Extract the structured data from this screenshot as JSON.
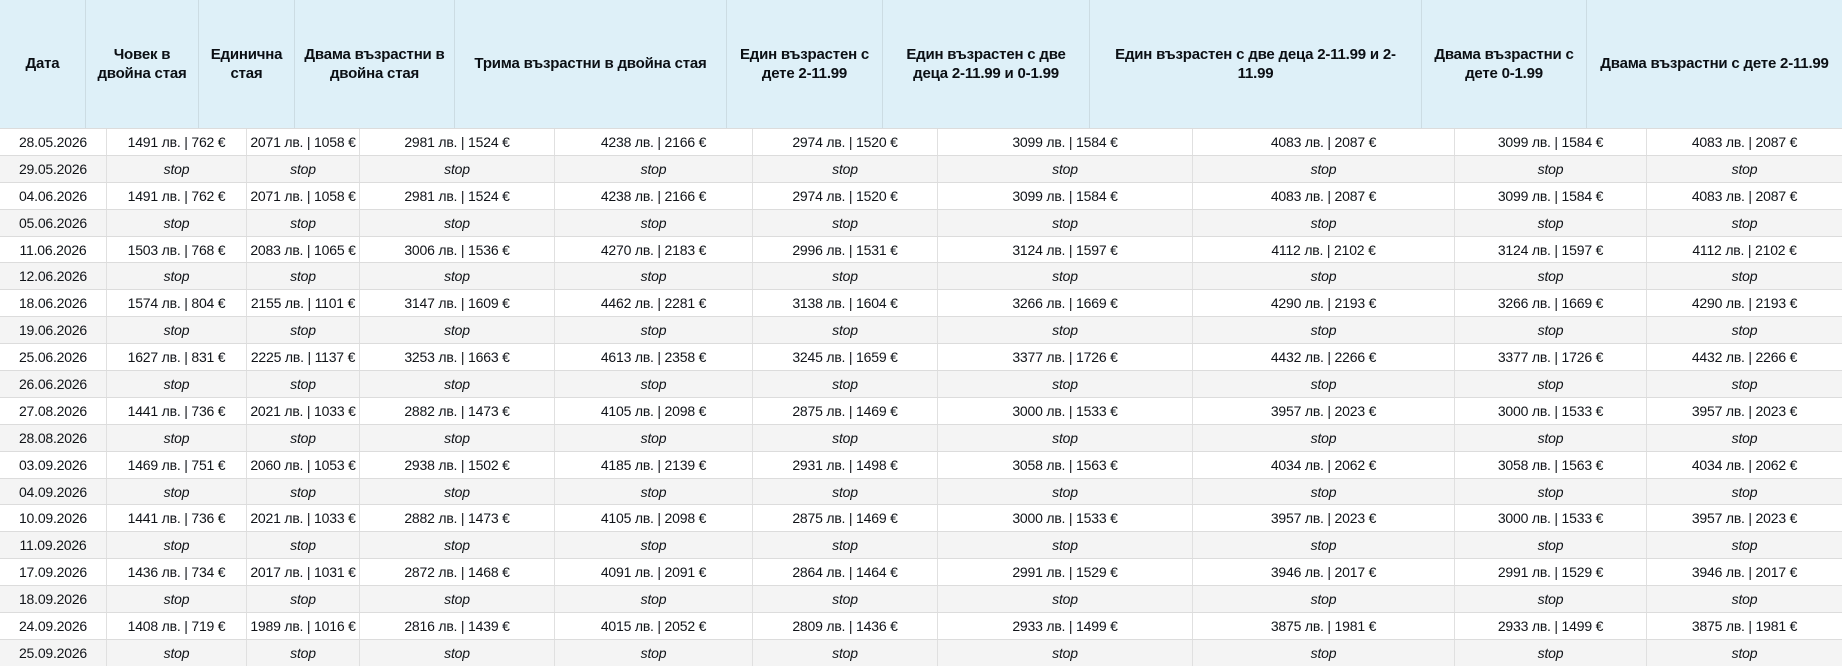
{
  "header": {
    "columns": [
      "Дата",
      "Човек в двойна стая",
      "Единична стая",
      "Двама възрастни в двойна стая",
      "Трима възрастни в двойна стая",
      "Един възрастен с дете 2-11.99",
      "Един възрастен с две деца 2-11.99 и 0-1.99",
      "Един възрастен с две деца 2-11.99 и 2-11.99",
      "Двама възрастни с дете 0-1.99",
      "Двама възрастни с дете 2-11.99"
    ]
  },
  "table": {
    "stop_label": "stop",
    "rows": [
      {
        "date": "28.05.2026",
        "type": "price",
        "cells": [
          "1491 лв. | 762 €",
          "2071 лв. | 1058 €",
          "2981 лв. | 1524 €",
          "4238 лв. | 2166 €",
          "2974 лв. | 1520 €",
          "3099 лв. | 1584 €",
          "4083 лв. | 2087 €",
          "3099 лв. | 1584 €",
          "4083 лв. | 2087 €"
        ]
      },
      {
        "date": "29.05.2026",
        "type": "stop",
        "cells": [
          "stop",
          "stop",
          "stop",
          "stop",
          "stop",
          "stop",
          "stop",
          "stop",
          "stop"
        ]
      },
      {
        "date": "04.06.2026",
        "type": "price",
        "cells": [
          "1491 лв. | 762 €",
          "2071 лв. | 1058 €",
          "2981 лв. | 1524 €",
          "4238 лв. | 2166 €",
          "2974 лв. | 1520 €",
          "3099 лв. | 1584 €",
          "4083 лв. | 2087 €",
          "3099 лв. | 1584 €",
          "4083 лв. | 2087 €"
        ]
      },
      {
        "date": "05.06.2026",
        "type": "stop",
        "cells": [
          "stop",
          "stop",
          "stop",
          "stop",
          "stop",
          "stop",
          "stop",
          "stop",
          "stop"
        ]
      },
      {
        "date": "11.06.2026",
        "type": "price",
        "cells": [
          "1503 лв. | 768 €",
          "2083 лв. | 1065 €",
          "3006 лв. | 1536 €",
          "4270 лв. | 2183 €",
          "2996 лв. | 1531 €",
          "3124 лв. | 1597 €",
          "4112 лв. | 2102 €",
          "3124 лв. | 1597 €",
          "4112 лв. | 2102 €"
        ]
      },
      {
        "date": "12.06.2026",
        "type": "stop",
        "cells": [
          "stop",
          "stop",
          "stop",
          "stop",
          "stop",
          "stop",
          "stop",
          "stop",
          "stop"
        ]
      },
      {
        "date": "18.06.2026",
        "type": "price",
        "cells": [
          "1574 лв. | 804 €",
          "2155 лв. | 1101 €",
          "3147 лв. | 1609 €",
          "4462 лв. | 2281 €",
          "3138 лв. | 1604 €",
          "3266 лв. | 1669 €",
          "4290 лв. | 2193 €",
          "3266 лв. | 1669 €",
          "4290 лв. | 2193 €"
        ]
      },
      {
        "date": "19.06.2026",
        "type": "stop",
        "cells": [
          "stop",
          "stop",
          "stop",
          "stop",
          "stop",
          "stop",
          "stop",
          "stop",
          "stop"
        ]
      },
      {
        "date": "25.06.2026",
        "type": "price",
        "cells": [
          "1627 лв. | 831 €",
          "2225 лв. | 1137 €",
          "3253 лв. | 1663 €",
          "4613 лв. | 2358 €",
          "3245 лв. | 1659 €",
          "3377 лв. | 1726 €",
          "4432 лв. | 2266 €",
          "3377 лв. | 1726 €",
          "4432 лв. | 2266 €"
        ]
      },
      {
        "date": "26.06.2026",
        "type": "stop",
        "cells": [
          "stop",
          "stop",
          "stop",
          "stop",
          "stop",
          "stop",
          "stop",
          "stop",
          "stop"
        ]
      },
      {
        "date": "27.08.2026",
        "type": "price",
        "cells": [
          "1441 лв. | 736 €",
          "2021 лв. | 1033 €",
          "2882 лв. | 1473 €",
          "4105 лв. | 2098 €",
          "2875 лв. | 1469 €",
          "3000 лв. | 1533 €",
          "3957 лв. | 2023 €",
          "3000 лв. | 1533 €",
          "3957 лв. | 2023 €"
        ]
      },
      {
        "date": "28.08.2026",
        "type": "stop",
        "cells": [
          "stop",
          "stop",
          "stop",
          "stop",
          "stop",
          "stop",
          "stop",
          "stop",
          "stop"
        ]
      },
      {
        "date": "03.09.2026",
        "type": "price",
        "cells": [
          "1469 лв. | 751 €",
          "2060 лв. | 1053 €",
          "2938 лв. | 1502 €",
          "4185 лв. | 2139 €",
          "2931 лв. | 1498 €",
          "3058 лв. | 1563 €",
          "4034 лв. | 2062 €",
          "3058 лв. | 1563 €",
          "4034 лв. | 2062 €"
        ]
      },
      {
        "date": "04.09.2026",
        "type": "stop",
        "cells": [
          "stop",
          "stop",
          "stop",
          "stop",
          "stop",
          "stop",
          "stop",
          "stop",
          "stop"
        ]
      },
      {
        "date": "10.09.2026",
        "type": "price",
        "cells": [
          "1441 лв. | 736 €",
          "2021 лв. | 1033 €",
          "2882 лв. | 1473 €",
          "4105 лв. | 2098 €",
          "2875 лв. | 1469 €",
          "3000 лв. | 1533 €",
          "3957 лв. | 2023 €",
          "3000 лв. | 1533 €",
          "3957 лв. | 2023 €"
        ]
      },
      {
        "date": "11.09.2026",
        "type": "stop",
        "cells": [
          "stop",
          "stop",
          "stop",
          "stop",
          "stop",
          "stop",
          "stop",
          "stop",
          "stop"
        ]
      },
      {
        "date": "17.09.2026",
        "type": "price",
        "cells": [
          "1436 лв. | 734 €",
          "2017 лв. | 1031 €",
          "2872 лв. | 1468 €",
          "4091 лв. | 2091 €",
          "2864 лв. | 1464 €",
          "2991 лв. | 1529 €",
          "3946 лв. | 2017 €",
          "2991 лв. | 1529 €",
          "3946 лв. | 2017 €"
        ]
      },
      {
        "date": "18.09.2026",
        "type": "stop",
        "cells": [
          "stop",
          "stop",
          "stop",
          "stop",
          "stop",
          "stop",
          "stop",
          "stop",
          "stop"
        ]
      },
      {
        "date": "24.09.2026",
        "type": "price",
        "cells": [
          "1408 лв. | 719 €",
          "1989 лв. | 1016 €",
          "2816 лв. | 1439 €",
          "4015 лв. | 2052 €",
          "2809 лв. | 1436 €",
          "2933 лв. | 1499 €",
          "3875 лв. | 1981 €",
          "2933 лв. | 1499 €",
          "3875 лв. | 1981 €"
        ]
      },
      {
        "date": "25.09.2026",
        "type": "stop",
        "cells": [
          "stop",
          "stop",
          "stop",
          "stop",
          "stop",
          "stop",
          "stop",
          "stop",
          "stop"
        ]
      }
    ]
  },
  "colors": {
    "header_bg": "#def0f8",
    "price_row_bg": "#ffffff",
    "stop_row_bg": "#f4f4f4",
    "border": "#e0e0e0",
    "text": "#101318"
  }
}
